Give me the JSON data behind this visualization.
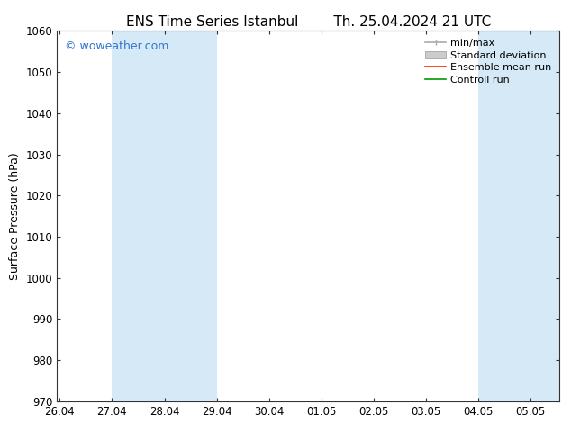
{
  "title_left": "ENS Time Series Istanbul",
  "title_right": "Th. 25.04.2024 21 UTC",
  "ylabel": "Surface Pressure (hPa)",
  "ylim": [
    970,
    1060
  ],
  "yticks": [
    970,
    980,
    990,
    1000,
    1010,
    1020,
    1030,
    1040,
    1050,
    1060
  ],
  "xtick_labels": [
    "26.04",
    "27.04",
    "28.04",
    "29.04",
    "30.04",
    "01.05",
    "02.05",
    "03.05",
    "04.05",
    "05.05"
  ],
  "xtick_positions": [
    0,
    1,
    2,
    3,
    4,
    5,
    6,
    7,
    8,
    9
  ],
  "xlim": [
    -0.05,
    9.55
  ],
  "shaded_bands": [
    {
      "x_start": 1.0,
      "x_end": 2.0
    },
    {
      "x_start": 2.0,
      "x_end": 3.0
    },
    {
      "x_start": 8.0,
      "x_end": 9.0
    },
    {
      "x_start": 9.0,
      "x_end": 9.55
    }
  ],
  "watermark": "© woweather.com",
  "watermark_color": "#3377cc",
  "band_color": "#d5e9f7",
  "background_color": "#ffffff",
  "axis_color": "#333333",
  "tick_color": "#333333",
  "title_fontsize": 11,
  "ylabel_fontsize": 9,
  "tick_fontsize": 8.5,
  "legend_fontsize": 8,
  "watermark_fontsize": 9
}
